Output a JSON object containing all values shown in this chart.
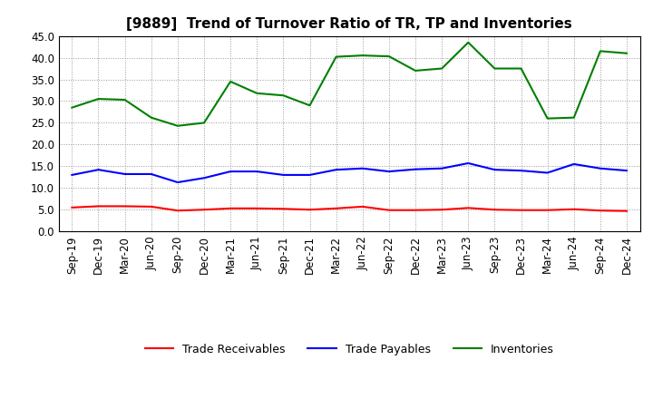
{
  "title": "[9889]  Trend of Turnover Ratio of TR, TP and Inventories",
  "x_labels": [
    "Sep-19",
    "Dec-19",
    "Mar-20",
    "Jun-20",
    "Sep-20",
    "Dec-20",
    "Mar-21",
    "Jun-21",
    "Sep-21",
    "Dec-21",
    "Mar-22",
    "Jun-22",
    "Sep-22",
    "Dec-22",
    "Mar-23",
    "Jun-23",
    "Sep-23",
    "Dec-23",
    "Mar-24",
    "Jun-24",
    "Sep-24",
    "Dec-24"
  ],
  "trade_receivables": [
    5.5,
    5.8,
    5.8,
    5.7,
    4.8,
    5.0,
    5.3,
    5.3,
    5.2,
    5.0,
    5.3,
    5.7,
    4.9,
    4.9,
    5.0,
    5.4,
    5.0,
    4.9,
    4.9,
    5.1,
    4.8,
    4.7
  ],
  "trade_payables": [
    13.0,
    14.2,
    13.2,
    13.2,
    11.3,
    12.3,
    13.8,
    13.8,
    13.0,
    13.0,
    14.2,
    14.5,
    13.8,
    14.3,
    14.5,
    15.7,
    14.2,
    14.0,
    13.5,
    15.5,
    14.5,
    14.0
  ],
  "inventories": [
    28.5,
    30.5,
    30.3,
    26.2,
    24.3,
    25.0,
    34.5,
    31.8,
    31.3,
    29.0,
    40.2,
    40.5,
    40.3,
    37.0,
    37.5,
    43.5,
    37.5,
    37.5,
    26.0,
    26.2,
    41.5,
    41.0
  ],
  "ylim": [
    0,
    45
  ],
  "yticks": [
    0.0,
    5.0,
    10.0,
    15.0,
    20.0,
    25.0,
    30.0,
    35.0,
    40.0,
    45.0
  ],
  "color_tr": "#ff0000",
  "color_tp": "#0000ff",
  "color_inv": "#008000",
  "background_color": "#ffffff",
  "grid_color": "#999999",
  "legend_tr": "Trade Receivables",
  "legend_tp": "Trade Payables",
  "legend_inv": "Inventories",
  "title_fontsize": 11,
  "tick_fontsize": 8.5,
  "linewidth": 1.5
}
